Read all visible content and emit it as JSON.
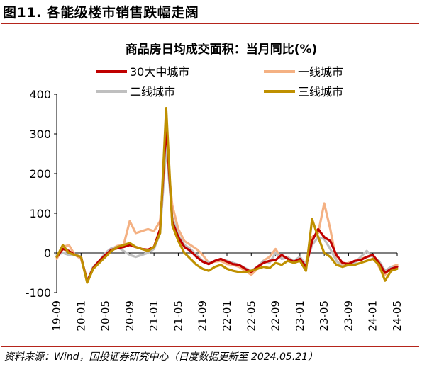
{
  "figure": {
    "title": "图11. 各能级楼市销售跌幅走阔",
    "source": "资料来源：Wind，国投证券研究中心（日度数据更新至 2024.05.21）"
  },
  "colors": {
    "accent_red": "#b5241b",
    "series_30": "#c00000",
    "series_tier1": "#f4b183",
    "series_tier2": "#bfbfbf",
    "series_tier3": "#bf9000"
  },
  "chart_data": {
    "type": "line",
    "title": "商品房日均成交面积：当月同比(%)",
    "xlabel": "",
    "ylabel": "",
    "ylim": [
      -100,
      400
    ],
    "yticks": [
      -100,
      0,
      100,
      200,
      300,
      400
    ],
    "ytick_labels": [
      "-100",
      "0",
      "100",
      "200",
      "300",
      "400"
    ],
    "xtick_labels": [
      "19-09",
      "20-01",
      "20-05",
      "20-09",
      "21-01",
      "21-05",
      "21-09",
      "22-01",
      "22-05",
      "22-09",
      "23-01",
      "23-05",
      "23-09",
      "24-01",
      "24-05"
    ],
    "x": [
      "19-09",
      "19-10",
      "19-11",
      "19-12",
      "20-01",
      "20-02",
      "20-03",
      "20-04",
      "20-05",
      "20-06",
      "20-07",
      "20-08",
      "20-09",
      "20-10",
      "20-11",
      "20-12",
      "21-01",
      "21-02",
      "21-03",
      "21-04",
      "21-05",
      "21-06",
      "21-07",
      "21-08",
      "21-09",
      "21-10",
      "21-11",
      "21-12",
      "22-01",
      "22-02",
      "22-03",
      "22-04",
      "22-05",
      "22-06",
      "22-07",
      "22-08",
      "22-09",
      "22-10",
      "22-11",
      "22-12",
      "23-01",
      "23-02",
      "23-03",
      "23-04",
      "23-05",
      "23-06",
      "23-07",
      "23-08",
      "23-09",
      "23-10",
      "23-11",
      "23-12",
      "24-01",
      "24-02",
      "24-03",
      "24-04",
      "24-05"
    ],
    "grid": false,
    "legend_position": "top",
    "legend_columns": 2,
    "series": [
      {
        "name": "30大中城市",
        "color": "#c00000",
        "values": [
          -10,
          10,
          5,
          -5,
          -10,
          -72,
          -38,
          -20,
          -5,
          8,
          12,
          15,
          20,
          15,
          10,
          8,
          15,
          60,
          320,
          80,
          40,
          15,
          5,
          -10,
          -22,
          -28,
          -20,
          -15,
          -22,
          -28,
          -30,
          -40,
          -48,
          -35,
          -25,
          -20,
          -18,
          -5,
          -15,
          -22,
          -15,
          -35,
          30,
          60,
          40,
          30,
          -5,
          -25,
          -28,
          -20,
          -18,
          -10,
          -5,
          -25,
          -50,
          -40,
          -35
        ]
      },
      {
        "name": "一线城市",
        "color": "#f4b183",
        "values": [
          -15,
          15,
          20,
          -5,
          -15,
          -70,
          -40,
          -25,
          -5,
          10,
          18,
          20,
          80,
          50,
          55,
          60,
          55,
          80,
          270,
          120,
          60,
          30,
          20,
          10,
          -5,
          -25,
          -22,
          -20,
          -28,
          -30,
          -35,
          -45,
          -55,
          -40,
          -20,
          -10,
          10,
          -15,
          -10,
          -25,
          -15,
          -25,
          40,
          50,
          125,
          60,
          -20,
          -30,
          -25,
          -22,
          -15,
          -10,
          -5,
          -35,
          -55,
          -35,
          -30
        ]
      },
      {
        "name": "二线城市",
        "color": "#bfbfbf",
        "values": [
          -5,
          0,
          -5,
          -5,
          -10,
          -70,
          -35,
          -20,
          0,
          12,
          15,
          5,
          -5,
          -10,
          -5,
          0,
          10,
          50,
          270,
          90,
          45,
          20,
          10,
          -5,
          -20,
          -25,
          -20,
          -15,
          -20,
          -25,
          -30,
          -38,
          -45,
          -35,
          -20,
          -25,
          0,
          -15,
          -12,
          -20,
          -10,
          -30,
          20,
          40,
          35,
          10,
          -20,
          -35,
          -30,
          -25,
          -10,
          5,
          -10,
          -20,
          -45,
          -35,
          -40
        ]
      },
      {
        "name": "三线城市",
        "color": "#bf9000",
        "values": [
          -10,
          20,
          0,
          -5,
          -10,
          -75,
          -40,
          -25,
          -10,
          5,
          15,
          20,
          25,
          15,
          10,
          5,
          15,
          50,
          365,
          70,
          30,
          0,
          -15,
          -30,
          -40,
          -45,
          -35,
          -30,
          -40,
          -45,
          -48,
          -48,
          -45,
          -40,
          -35,
          -38,
          -25,
          -30,
          -20,
          -25,
          -20,
          -45,
          85,
          40,
          0,
          -10,
          -30,
          -35,
          -30,
          -30,
          -25,
          -20,
          -15,
          -30,
          -70,
          -45,
          -40
        ]
      }
    ]
  }
}
